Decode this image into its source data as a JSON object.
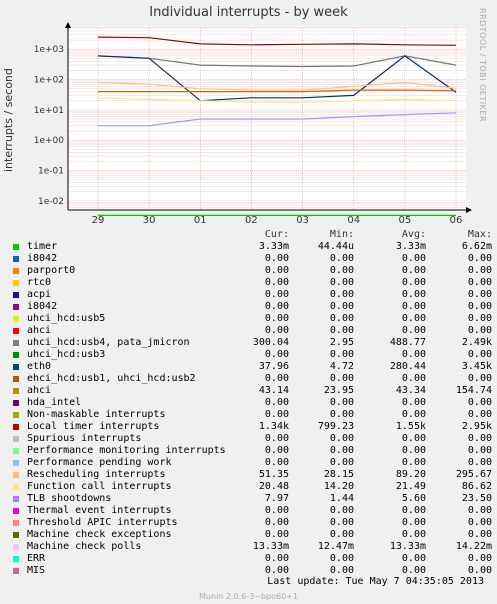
{
  "chart_data": {
    "type": "line",
    "title": "Individual interrupts - by week",
    "ylabel": "interrupts / second",
    "yscale": "log",
    "ylim": [
      0.005,
      5000
    ],
    "yticks": [
      "1e+03",
      "1e+02",
      "1e+01",
      "1e+00",
      "1e-01",
      "1e-02"
    ],
    "x_categories": [
      "29",
      "30",
      "01",
      "02",
      "03",
      "04",
      "05",
      "06"
    ],
    "side_label": "RRDTOOL / TOBI OETIKER",
    "grid": true,
    "series": [
      {
        "name": "timer",
        "color": "#00cc00",
        "x": [
          "29",
          "30",
          "01",
          "02",
          "03",
          "04",
          "05",
          "06"
        ],
        "values": [
          0.00333,
          0.00333,
          0.00333,
          0.00333,
          0.00333,
          0.00333,
          0.00333,
          0.00333
        ]
      },
      {
        "name": "Local timer interrupts",
        "color": "#990000",
        "x": [
          "29",
          "30",
          "01",
          "02",
          "03",
          "04",
          "05",
          "06"
        ],
        "values": [
          2500,
          2400,
          1500,
          1400,
          1450,
          1500,
          1400,
          1340
        ]
      },
      {
        "name": "uhci_hcd: usb4, pata_jmicron",
        "color": "#777777",
        "x": [
          "29",
          "30",
          "01",
          "02",
          "03",
          "04",
          "05",
          "06"
        ],
        "values": [
          600,
          500,
          300,
          280,
          270,
          280,
          600,
          300
        ]
      },
      {
        "name": "eth0",
        "color": "#003366",
        "x": [
          "29",
          "30",
          "01",
          "02",
          "03",
          "04",
          "05",
          "06"
        ],
        "values": [
          600,
          500,
          20,
          25,
          25,
          30,
          600,
          38
        ]
      },
      {
        "name": "Rescheduling interrupts",
        "color": "#ffbf80",
        "x": [
          "29",
          "30",
          "01",
          "02",
          "03",
          "04",
          "05",
          "06"
        ],
        "values": [
          80,
          70,
          50,
          45,
          45,
          60,
          80,
          51
        ]
      },
      {
        "name": "ahci",
        "color": "#cc6600",
        "x": [
          "29",
          "30",
          "01",
          "02",
          "03",
          "04",
          "05",
          "06"
        ],
        "values": [
          40,
          40,
          40,
          40,
          40,
          45,
          45,
          43
        ]
      },
      {
        "name": "Function call interrupts",
        "color": "#ffe680",
        "x": [
          "29",
          "30",
          "01",
          "02",
          "03",
          "04",
          "05",
          "06"
        ],
        "values": [
          25,
          22,
          20,
          18,
          18,
          20,
          22,
          20
        ]
      },
      {
        "name": "TLB shootdowns",
        "color": "#9999ff",
        "x": [
          "29",
          "30",
          "01",
          "02",
          "03",
          "04",
          "05",
          "06"
        ],
        "values": [
          3,
          3,
          5,
          5,
          5,
          6,
          7,
          8
        ]
      }
    ]
  },
  "legend": {
    "headers": [
      "Cur:",
      "Min:",
      "Avg:",
      "Max:"
    ],
    "rows": [
      {
        "name": "timer",
        "color": "#00cc00",
        "cur": "3.33m",
        "min": "44.44u",
        "avg": "3.33m",
        "max": "6.62m"
      },
      {
        "name": "i8042",
        "color": "#0066b3",
        "cur": "0.00",
        "min": "0.00",
        "avg": "0.00",
        "max": "0.00"
      },
      {
        "name": "parport0",
        "color": "#ff8000",
        "cur": "0.00",
        "min": "0.00",
        "avg": "0.00",
        "max": "0.00"
      },
      {
        "name": "rtc0",
        "color": "#ffcc00",
        "cur": "0.00",
        "min": "0.00",
        "avg": "0.00",
        "max": "0.00"
      },
      {
        "name": "acpi",
        "color": "#330099",
        "cur": "0.00",
        "min": "0.00",
        "avg": "0.00",
        "max": "0.00"
      },
      {
        "name": "i8042",
        "color": "#990099",
        "cur": "0.00",
        "min": "0.00",
        "avg": "0.00",
        "max": "0.00"
      },
      {
        "name": "uhci_hcd:usb5",
        "color": "#ccff00",
        "cur": "0.00",
        "min": "0.00",
        "avg": "0.00",
        "max": "0.00"
      },
      {
        "name": "ahci",
        "color": "#ff0000",
        "cur": "0.00",
        "min": "0.00",
        "avg": "0.00",
        "max": "0.00"
      },
      {
        "name": "uhci_hcd:usb4, pata_jmicron",
        "color": "#808080",
        "cur": "300.04",
        "min": "2.95",
        "avg": "488.77",
        "max": "2.49k"
      },
      {
        "name": "uhci_hcd:usb3",
        "color": "#008f00",
        "cur": "0.00",
        "min": "0.00",
        "avg": "0.00",
        "max": "0.00"
      },
      {
        "name": "eth0",
        "color": "#00487d",
        "cur": "37.96",
        "min": "4.72",
        "avg": "280.44",
        "max": "3.45k"
      },
      {
        "name": "ehci_hcd:usb1, uhci_hcd:usb2",
        "color": "#b35a00",
        "cur": "0.00",
        "min": "0.00",
        "avg": "0.00",
        "max": "0.00"
      },
      {
        "name": "ahci",
        "color": "#b38f00",
        "cur": "43.14",
        "min": "23.95",
        "avg": "43.34",
        "max": "154.74"
      },
      {
        "name": "hda_intel",
        "color": "#6b006b",
        "cur": "0.00",
        "min": "0.00",
        "avg": "0.00",
        "max": "0.00"
      },
      {
        "name": "Non-maskable interrupts",
        "color": "#8fb300",
        "cur": "0.00",
        "min": "0.00",
        "avg": "0.00",
        "max": "0.00"
      },
      {
        "name": "Local timer interrupts",
        "color": "#b30000",
        "cur": "1.34k",
        "min": "799.23",
        "avg": "1.55k",
        "max": "2.95k"
      },
      {
        "name": "Spurious interrupts",
        "color": "#bebebe",
        "cur": "0.00",
        "min": "0.00",
        "avg": "0.00",
        "max": "0.00"
      },
      {
        "name": "Performance monitoring interrupts",
        "color": "#80ff80",
        "cur": "0.00",
        "min": "0.00",
        "avg": "0.00",
        "max": "0.00"
      },
      {
        "name": "Performance pending work",
        "color": "#80c9ff",
        "cur": "0.00",
        "min": "0.00",
        "avg": "0.00",
        "max": "0.00"
      },
      {
        "name": "Rescheduling interrupts",
        "color": "#ffc080",
        "cur": "51.35",
        "min": "28.15",
        "avg": "89.20",
        "max": "295.67"
      },
      {
        "name": "Function call interrupts",
        "color": "#ffe680",
        "cur": "20.48",
        "min": "14.20",
        "avg": "21.49",
        "max": "86.62"
      },
      {
        "name": "TLB shootdowns",
        "color": "#aa80ff",
        "cur": "7.97",
        "min": "1.44",
        "avg": "5.60",
        "max": "23.50"
      },
      {
        "name": "Thermal event interrupts",
        "color": "#ee00cc",
        "cur": "0.00",
        "min": "0.00",
        "avg": "0.00",
        "max": "0.00"
      },
      {
        "name": "Threshold APIC interrupts",
        "color": "#ff8080",
        "cur": "0.00",
        "min": "0.00",
        "avg": "0.00",
        "max": "0.00"
      },
      {
        "name": "Machine check exceptions",
        "color": "#666600",
        "cur": "0.00",
        "min": "0.00",
        "avg": "0.00",
        "max": "0.00"
      },
      {
        "name": "Machine check polls",
        "color": "#ffbfff",
        "cur": "13.33m",
        "min": "12.47m",
        "avg": "13.33m",
        "max": "14.22m"
      },
      {
        "name": "ERR",
        "color": "#00ffcc",
        "cur": "0.00",
        "min": "0.00",
        "avg": "0.00",
        "max": "0.00"
      },
      {
        "name": "MIS",
        "color": "#cc6699",
        "cur": "0.00",
        "min": "0.00",
        "avg": "0.00",
        "max": "0.00"
      }
    ]
  },
  "last_update": "Last update:  Tue May  7 04:35:05 2013",
  "footer": "Munin 2.0.6-3~bpo60+1"
}
